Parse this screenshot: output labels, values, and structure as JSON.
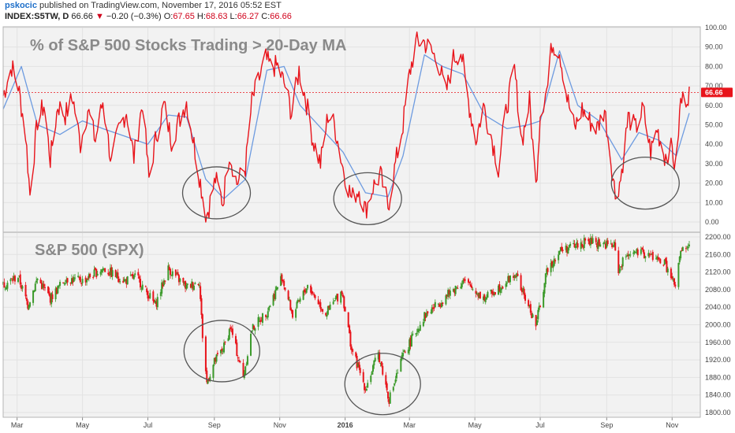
{
  "header": {
    "author": "pskocic",
    "published_text": "published on TradingView.com, November 17, 2016 05:52 EST",
    "symbol": "INDEX:S5TW, D",
    "last": "66.66",
    "arrow": "▼",
    "change": "−0.20 (−0.3%)",
    "o_label": "O:",
    "o_value": "67.65",
    "h_label": "H:",
    "h_value": "68.63",
    "l_label": "L:",
    "l_value": "66.27",
    "c_label": "C:",
    "c_value": "66.66"
  },
  "colors": {
    "breadth_line": "#e8141b",
    "ma_line": "#6d9be0",
    "up_candle": "#3c9a2b",
    "down_candle": "#e8141b",
    "grid": "#e2e2e2",
    "panel_bg": "#f2f2f2",
    "reference_line": "#e8141b"
  },
  "chart_data": [
    {
      "type": "line",
      "title": "% of S&P 500 Stocks Trading > 20-Day MA",
      "ylim": [
        0,
        100
      ],
      "y_ticks": [
        "0.00",
        "10.00",
        "20.00",
        "30.00",
        "40.00",
        "50.00",
        "60.00",
        "70.00",
        "80.00",
        "90.00",
        "100.00"
      ],
      "last_value_label": "66.66",
      "reference_line": 66.66,
      "x_range": [
        "2015-02-16",
        "2016-11-17"
      ],
      "series": [
        {
          "role": "breadth",
          "anchors": [
            [
              "2015-02-16",
              65
            ],
            [
              "2015-02-24",
              80
            ],
            [
              "2015-03-02",
              70
            ],
            [
              "2015-03-09",
              45
            ],
            [
              "2015-03-13",
              14
            ],
            [
              "2015-03-20",
              52
            ],
            [
              "2015-03-26",
              60
            ],
            [
              "2015-04-01",
              32
            ],
            [
              "2015-04-08",
              60
            ],
            [
              "2015-04-15",
              55
            ],
            [
              "2015-04-22",
              64
            ],
            [
              "2015-04-29",
              40
            ],
            [
              "2015-05-06",
              58
            ],
            [
              "2015-05-13",
              42
            ],
            [
              "2015-05-20",
              62
            ],
            [
              "2015-05-28",
              30
            ],
            [
              "2015-06-04",
              48
            ],
            [
              "2015-06-11",
              57
            ],
            [
              "2015-06-18",
              33
            ],
            [
              "2015-06-26",
              62
            ],
            [
              "2015-07-02",
              22
            ],
            [
              "2015-07-09",
              45
            ],
            [
              "2015-07-16",
              60
            ],
            [
              "2015-07-23",
              42
            ],
            [
              "2015-07-30",
              52
            ],
            [
              "2015-08-06",
              62
            ],
            [
              "2015-08-13",
              40
            ],
            [
              "2015-08-21",
              14
            ],
            [
              "2015-08-24",
              2
            ],
            [
              "2015-08-27",
              8
            ],
            [
              "2015-09-02",
              22
            ],
            [
              "2015-09-09",
              10
            ],
            [
              "2015-09-15",
              36
            ],
            [
              "2015-09-22",
              20
            ],
            [
              "2015-09-30",
              28
            ],
            [
              "2015-10-06",
              62
            ],
            [
              "2015-10-13",
              74
            ],
            [
              "2015-10-19",
              84
            ],
            [
              "2015-10-23",
              80
            ],
            [
              "2015-10-30",
              80
            ],
            [
              "2015-11-06",
              70
            ],
            [
              "2015-11-12",
              56
            ],
            [
              "2015-11-19",
              78
            ],
            [
              "2015-11-25",
              64
            ],
            [
              "2015-12-02",
              42
            ],
            [
              "2015-12-09",
              30
            ],
            [
              "2015-12-16",
              55
            ],
            [
              "2015-12-22",
              50
            ],
            [
              "2015-12-30",
              28
            ],
            [
              "2016-01-07",
              12
            ],
            [
              "2016-01-14",
              17
            ],
            [
              "2016-01-20",
              6
            ],
            [
              "2016-01-27",
              18
            ],
            [
              "2016-02-03",
              24
            ],
            [
              "2016-02-10",
              8
            ],
            [
              "2016-02-17",
              30
            ],
            [
              "2016-02-24",
              50
            ],
            [
              "2016-03-01",
              76
            ],
            [
              "2016-03-07",
              92
            ],
            [
              "2016-03-14",
              93
            ],
            [
              "2016-03-21",
              88
            ],
            [
              "2016-03-28",
              82
            ],
            [
              "2016-04-04",
              66
            ],
            [
              "2016-04-11",
              84
            ],
            [
              "2016-04-18",
              88
            ],
            [
              "2016-04-25",
              62
            ],
            [
              "2016-05-02",
              42
            ],
            [
              "2016-05-09",
              60
            ],
            [
              "2016-05-16",
              45
            ],
            [
              "2016-05-23",
              28
            ],
            [
              "2016-05-31",
              60
            ],
            [
              "2016-06-07",
              78
            ],
            [
              "2016-06-14",
              42
            ],
            [
              "2016-06-21",
              62
            ],
            [
              "2016-06-27",
              18
            ],
            [
              "2016-07-01",
              56
            ],
            [
              "2016-07-08",
              70
            ],
            [
              "2016-07-12",
              92
            ],
            [
              "2016-07-19",
              88
            ],
            [
              "2016-07-26",
              64
            ],
            [
              "2016-08-02",
              48
            ],
            [
              "2016-08-09",
              58
            ],
            [
              "2016-08-16",
              52
            ],
            [
              "2016-08-23",
              48
            ],
            [
              "2016-08-30",
              58
            ],
            [
              "2016-09-09",
              14
            ],
            [
              "2016-09-14",
              22
            ],
            [
              "2016-09-21",
              54
            ],
            [
              "2016-09-28",
              48
            ],
            [
              "2016-10-05",
              58
            ],
            [
              "2016-10-12",
              36
            ],
            [
              "2016-10-18",
              48
            ],
            [
              "2016-10-25",
              34
            ],
            [
              "2016-11-01",
              38
            ],
            [
              "2016-11-04",
              26
            ],
            [
              "2016-11-09",
              62
            ],
            [
              "2016-11-14",
              64
            ],
            [
              "2016-11-17",
              66.66
            ]
          ]
        },
        {
          "role": "moving-average",
          "anchors": [
            [
              "2015-02-16",
              58
            ],
            [
              "2015-03-05",
              80
            ],
            [
              "2015-03-20",
              50
            ],
            [
              "2015-04-10",
              45
            ],
            [
              "2015-05-01",
              52
            ],
            [
              "2015-05-20",
              48
            ],
            [
              "2015-06-10",
              44
            ],
            [
              "2015-07-01",
              40
            ],
            [
              "2015-07-20",
              55
            ],
            [
              "2015-08-06",
              54
            ],
            [
              "2015-08-24",
              22
            ],
            [
              "2015-09-10",
              12
            ],
            [
              "2015-09-30",
              22
            ],
            [
              "2015-10-20",
              78
            ],
            [
              "2015-11-05",
              80
            ],
            [
              "2015-11-20",
              60
            ],
            [
              "2015-12-10",
              48
            ],
            [
              "2015-12-30",
              36
            ],
            [
              "2016-01-20",
              15
            ],
            [
              "2016-02-10",
              13
            ],
            [
              "2016-02-24",
              34
            ],
            [
              "2016-03-15",
              86
            ],
            [
              "2016-04-01",
              80
            ],
            [
              "2016-04-20",
              76
            ],
            [
              "2016-05-10",
              55
            ],
            [
              "2016-05-31",
              48
            ],
            [
              "2016-06-20",
              50
            ],
            [
              "2016-07-01",
              52
            ],
            [
              "2016-07-19",
              88
            ],
            [
              "2016-08-05",
              60
            ],
            [
              "2016-08-25",
              52
            ],
            [
              "2016-09-15",
              32
            ],
            [
              "2016-10-01",
              46
            ],
            [
              "2016-10-20",
              42
            ],
            [
              "2016-11-05",
              34
            ],
            [
              "2016-11-17",
              56
            ]
          ]
        }
      ],
      "annotations": [
        {
          "shape": "ellipse",
          "center": [
            "2015-09-03",
            15
          ]
        },
        {
          "shape": "ellipse",
          "center": [
            "2016-01-22",
            12
          ]
        },
        {
          "shape": "ellipse",
          "center": [
            "2016-10-07",
            20
          ]
        }
      ]
    },
    {
      "type": "candlestick",
      "title": "S&P 500 (SPX)",
      "ylim": [
        1780,
        2210
      ],
      "y_ticks": [
        "1800.00",
        "1840.00",
        "1880.00",
        "1920.00",
        "1960.00",
        "2000.00",
        "2040.00",
        "2080.00",
        "2120.00",
        "2160.00",
        "2200.00"
      ],
      "x_ticks": [
        "Mar",
        "May",
        "Jul",
        "Sep",
        "Nov",
        "2016",
        "Mar",
        "May",
        "Jul",
        "Sep",
        "Nov"
      ],
      "x_tick_dates": [
        "2015-03-01",
        "2015-05-01",
        "2015-07-01",
        "2015-09-01",
        "2015-11-01",
        "2016-01-01",
        "2016-03-01",
        "2016-05-01",
        "2016-07-01",
        "2016-09-01",
        "2016-11-01"
      ],
      "close_anchors": [
        [
          "2015-02-16",
          2090
        ],
        [
          "2015-03-02",
          2110
        ],
        [
          "2015-03-11",
          2045
        ],
        [
          "2015-03-20",
          2105
        ],
        [
          "2015-04-01",
          2060
        ],
        [
          "2015-04-15",
          2105
        ],
        [
          "2015-05-01",
          2100
        ],
        [
          "2015-05-20",
          2128
        ],
        [
          "2015-06-10",
          2100
        ],
        [
          "2015-06-20",
          2110
        ],
        [
          "2015-07-08",
          2045
        ],
        [
          "2015-07-20",
          2128
        ],
        [
          "2015-08-06",
          2085
        ],
        [
          "2015-08-18",
          2100
        ],
        [
          "2015-08-21",
          1975
        ],
        [
          "2015-08-25",
          1868
        ],
        [
          "2015-09-01",
          1915
        ],
        [
          "2015-09-10",
          1950
        ],
        [
          "2015-09-16",
          1995
        ],
        [
          "2015-09-28",
          1880
        ],
        [
          "2015-10-06",
          1990
        ],
        [
          "2015-10-20",
          2030
        ],
        [
          "2015-11-03",
          2110
        ],
        [
          "2015-11-13",
          2022
        ],
        [
          "2015-11-27",
          2090
        ],
        [
          "2015-12-14",
          2025
        ],
        [
          "2015-12-29",
          2078
        ],
        [
          "2016-01-07",
          1945
        ],
        [
          "2016-01-20",
          1855
        ],
        [
          "2016-02-01",
          1935
        ],
        [
          "2016-02-11",
          1830
        ],
        [
          "2016-02-24",
          1930
        ],
        [
          "2016-03-15",
          2020
        ],
        [
          "2016-04-20",
          2100
        ],
        [
          "2016-05-10",
          2060
        ],
        [
          "2016-06-08",
          2115
        ],
        [
          "2016-06-27",
          2000
        ],
        [
          "2016-07-08",
          2130
        ],
        [
          "2016-07-20",
          2170
        ],
        [
          "2016-08-15",
          2190
        ],
        [
          "2016-09-08",
          2180
        ],
        [
          "2016-09-12",
          2125
        ],
        [
          "2016-09-21",
          2165
        ],
        [
          "2016-10-10",
          2160
        ],
        [
          "2016-10-25",
          2140
        ],
        [
          "2016-11-04",
          2085
        ],
        [
          "2016-11-09",
          2165
        ],
        [
          "2016-11-17",
          2180
        ]
      ],
      "annotations": [
        {
          "shape": "ellipse",
          "center": [
            "2015-09-08",
            1940
          ]
        },
        {
          "shape": "ellipse",
          "center": [
            "2016-02-05",
            1865
          ]
        }
      ]
    }
  ]
}
